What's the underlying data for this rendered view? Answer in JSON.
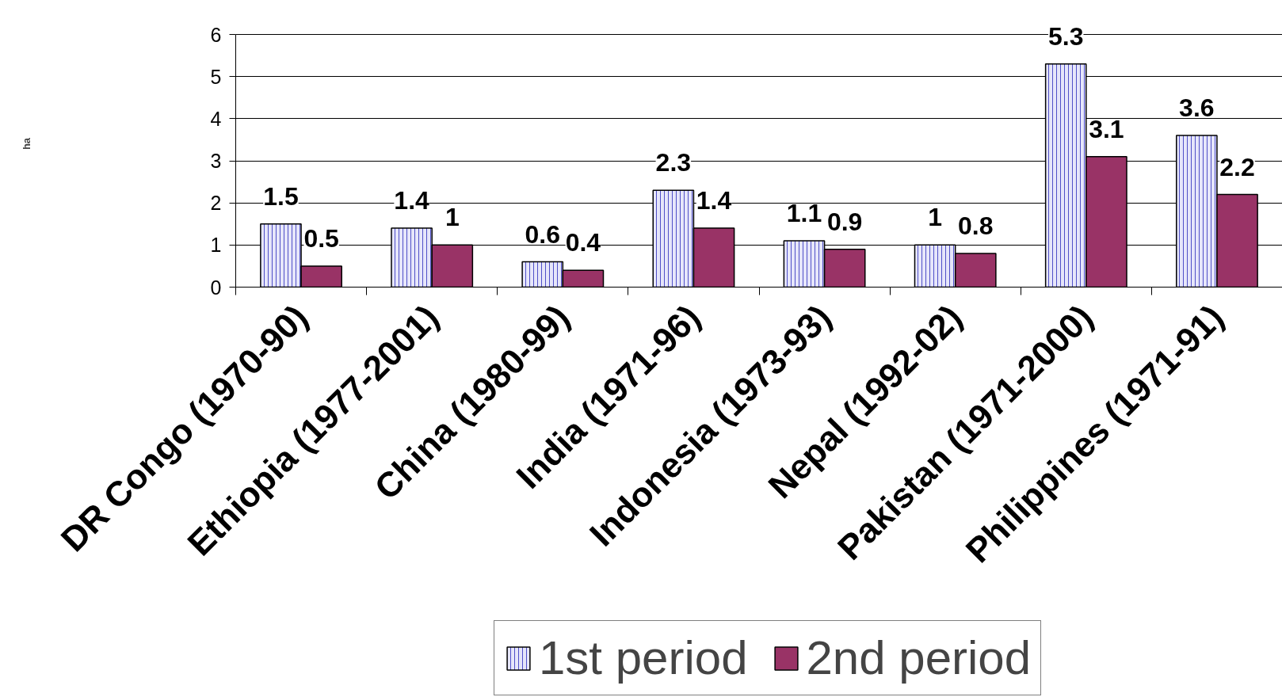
{
  "chart_data": {
    "type": "bar",
    "categories": [
      "DR Congo (1970-90)",
      "Ethiopia (1977-2001)",
      "China (1980-99)",
      "India (1971-96)",
      "Indonesia (1973-93)",
      "Nepal (1992-02)",
      "Pakistan (1971-2000)",
      "Philippines (1971-91)"
    ],
    "series": [
      {
        "name": "1st period",
        "color": "#e6e6fa",
        "values": [
          1.5,
          1.4,
          0.6,
          2.3,
          1.1,
          1,
          5.3,
          3.6
        ]
      },
      {
        "name": "2nd period",
        "color": "#993366",
        "values": [
          0.5,
          1,
          0.4,
          1.4,
          0.9,
          0.8,
          3.1,
          2.2
        ]
      }
    ],
    "ylabel": "ha",
    "ylim": [
      0,
      6
    ],
    "yticks": [
      0,
      1,
      2,
      3,
      4,
      5,
      6
    ],
    "grid": "y",
    "legend": "bottom",
    "data_labels": true
  }
}
